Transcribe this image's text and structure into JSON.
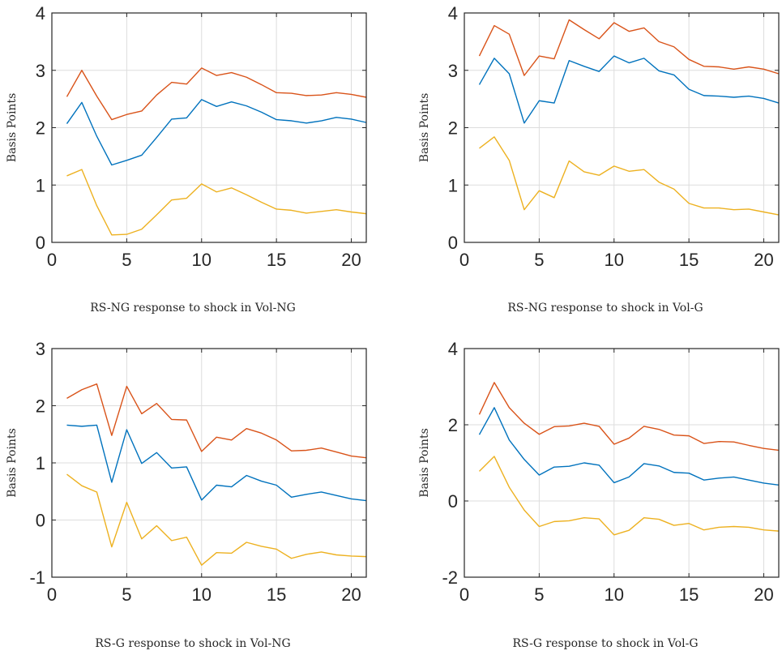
{
  "colors": {
    "upper": "#D95319",
    "median": "#0072BD",
    "lower": "#EDB120",
    "grid": "#DDDDDD",
    "axis": "#262626"
  },
  "chart_data": [
    {
      "type": "line",
      "caption": "RS-NG response to shock in Vol-NG",
      "ylabel": "Basis Points",
      "xlim": [
        0,
        21
      ],
      "ylim": [
        0,
        4
      ],
      "xticks": [
        0,
        5,
        10,
        15,
        20
      ],
      "yticks": [
        0,
        1,
        2,
        3,
        4
      ],
      "grid": true,
      "x": [
        1,
        2,
        3,
        4,
        5,
        6,
        7,
        8,
        9,
        10,
        11,
        12,
        13,
        14,
        15,
        16,
        17,
        18,
        19,
        20,
        21
      ],
      "series": [
        {
          "color_key": "upper",
          "values": [
            2.54,
            3.0,
            2.55,
            2.14,
            2.23,
            2.29,
            2.57,
            2.79,
            2.76,
            3.04,
            2.91,
            2.96,
            2.88,
            2.75,
            2.61,
            2.6,
            2.56,
            2.57,
            2.61,
            2.58,
            2.53
          ]
        },
        {
          "color_key": "median",
          "values": [
            2.07,
            2.44,
            1.85,
            1.35,
            1.43,
            1.52,
            1.83,
            2.15,
            2.17,
            2.49,
            2.37,
            2.45,
            2.38,
            2.27,
            2.14,
            2.12,
            2.08,
            2.12,
            2.18,
            2.15,
            2.09
          ]
        },
        {
          "color_key": "lower",
          "values": [
            1.16,
            1.27,
            0.64,
            0.13,
            0.14,
            0.23,
            0.48,
            0.74,
            0.77,
            1.02,
            0.88,
            0.95,
            0.83,
            0.7,
            0.58,
            0.56,
            0.51,
            0.54,
            0.57,
            0.53,
            0.5
          ]
        }
      ]
    },
    {
      "type": "line",
      "caption": "RS-NG response to shock in Vol-G",
      "ylabel": "Basis Points",
      "xlim": [
        0,
        21
      ],
      "ylim": [
        0,
        4
      ],
      "xticks": [
        0,
        5,
        10,
        15,
        20
      ],
      "yticks": [
        0,
        1,
        2,
        3,
        4
      ],
      "grid": true,
      "x": [
        1,
        2,
        3,
        4,
        5,
        6,
        7,
        8,
        9,
        10,
        11,
        12,
        13,
        14,
        15,
        16,
        17,
        18,
        19,
        20,
        21
      ],
      "series": [
        {
          "color_key": "upper",
          "values": [
            3.25,
            3.78,
            3.63,
            2.91,
            3.25,
            3.2,
            3.88,
            3.71,
            3.55,
            3.83,
            3.68,
            3.74,
            3.5,
            3.41,
            3.19,
            3.07,
            3.06,
            3.02,
            3.06,
            3.02,
            2.94
          ]
        },
        {
          "color_key": "median",
          "values": [
            2.75,
            3.21,
            2.94,
            2.08,
            2.47,
            2.43,
            3.17,
            3.07,
            2.98,
            3.25,
            3.13,
            3.21,
            2.99,
            2.92,
            2.67,
            2.56,
            2.55,
            2.53,
            2.55,
            2.51,
            2.43
          ]
        },
        {
          "color_key": "lower",
          "values": [
            1.64,
            1.84,
            1.43,
            0.57,
            0.9,
            0.78,
            1.42,
            1.23,
            1.17,
            1.33,
            1.24,
            1.27,
            1.05,
            0.93,
            0.68,
            0.6,
            0.6,
            0.57,
            0.58,
            0.53,
            0.48
          ]
        }
      ]
    },
    {
      "type": "line",
      "caption": "RS-G response to shock in Vol-NG",
      "ylabel": "Basis Points",
      "xlim": [
        0,
        21
      ],
      "ylim": [
        -1,
        3
      ],
      "xticks": [
        0,
        5,
        10,
        15,
        20
      ],
      "yticks": [
        -1,
        0,
        1,
        2,
        3
      ],
      "grid": true,
      "x": [
        1,
        2,
        3,
        4,
        5,
        6,
        7,
        8,
        9,
        10,
        11,
        12,
        13,
        14,
        15,
        16,
        17,
        18,
        19,
        20,
        21
      ],
      "series": [
        {
          "color_key": "upper",
          "values": [
            2.13,
            2.28,
            2.38,
            1.48,
            2.34,
            1.86,
            2.04,
            1.76,
            1.75,
            1.2,
            1.45,
            1.4,
            1.6,
            1.52,
            1.4,
            1.21,
            1.22,
            1.26,
            1.19,
            1.12,
            1.09
          ]
        },
        {
          "color_key": "median",
          "values": [
            1.66,
            1.64,
            1.66,
            0.66,
            1.58,
            0.99,
            1.18,
            0.91,
            0.93,
            0.35,
            0.61,
            0.58,
            0.78,
            0.68,
            0.61,
            0.4,
            0.45,
            0.49,
            0.43,
            0.37,
            0.34
          ]
        },
        {
          "color_key": "lower",
          "values": [
            0.8,
            0.6,
            0.49,
            -0.47,
            0.31,
            -0.33,
            -0.1,
            -0.36,
            -0.3,
            -0.79,
            -0.57,
            -0.58,
            -0.39,
            -0.46,
            -0.51,
            -0.67,
            -0.6,
            -0.56,
            -0.61,
            -0.63,
            -0.64
          ]
        }
      ]
    },
    {
      "type": "line",
      "caption": "RS-G response to shock in Vol-G",
      "ylabel": "Basis Points",
      "xlim": [
        0,
        21
      ],
      "ylim": [
        -2,
        4
      ],
      "xticks": [
        0,
        5,
        10,
        15,
        20
      ],
      "yticks": [
        -2,
        0,
        2,
        4
      ],
      "grid": true,
      "x": [
        1,
        2,
        3,
        4,
        5,
        6,
        7,
        8,
        9,
        10,
        11,
        12,
        13,
        14,
        15,
        16,
        17,
        18,
        19,
        20,
        21
      ],
      "series": [
        {
          "color_key": "upper",
          "values": [
            2.27,
            3.11,
            2.45,
            2.04,
            1.75,
            1.95,
            1.97,
            2.04,
            1.96,
            1.49,
            1.65,
            1.96,
            1.88,
            1.73,
            1.71,
            1.51,
            1.56,
            1.55,
            1.46,
            1.38,
            1.33
          ]
        },
        {
          "color_key": "median",
          "values": [
            1.74,
            2.45,
            1.6,
            1.09,
            0.68,
            0.89,
            0.91,
            1.0,
            0.94,
            0.48,
            0.63,
            0.98,
            0.92,
            0.75,
            0.73,
            0.55,
            0.6,
            0.63,
            0.55,
            0.47,
            0.42
          ]
        },
        {
          "color_key": "lower",
          "values": [
            0.78,
            1.17,
            0.36,
            -0.24,
            -0.67,
            -0.54,
            -0.52,
            -0.44,
            -0.47,
            -0.89,
            -0.77,
            -0.44,
            -0.48,
            -0.64,
            -0.59,
            -0.76,
            -0.69,
            -0.67,
            -0.69,
            -0.76,
            -0.79
          ]
        }
      ]
    }
  ]
}
